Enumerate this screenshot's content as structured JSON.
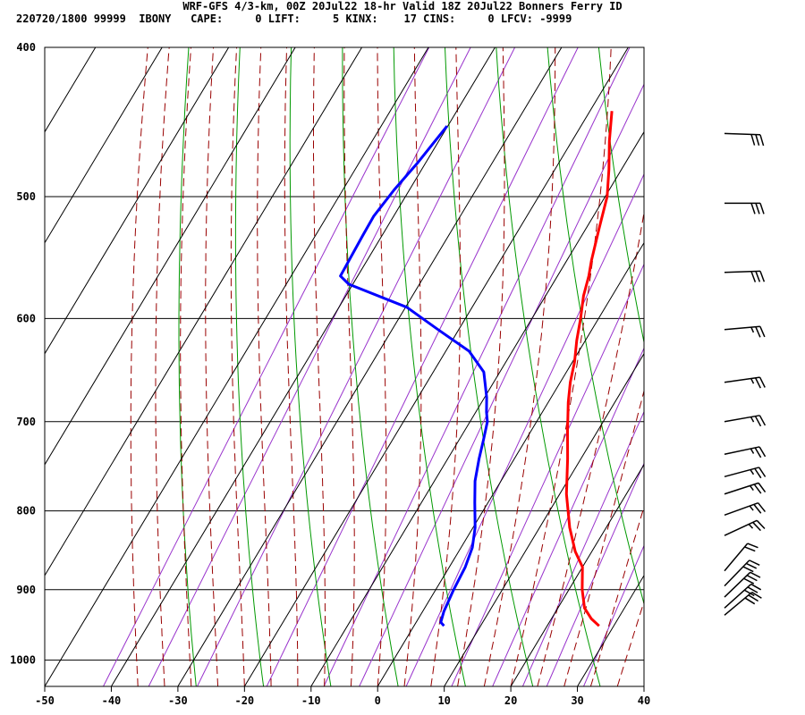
{
  "header": {
    "title": "WRF-GFS 4/3-km, 00Z 20Jul22 18-hr Valid 18Z 20Jul22 Bonners Ferry ID",
    "indices": "220720/1800 99999  IBONY   CAPE:     0 LIFT:     5 KINX:    17 CINS:     0 LFCV: -9999"
  },
  "chart_data": {
    "type": "line",
    "title": "WRF-GFS 4/3-km, 00Z 20Jul22 18-hr Valid 18Z 20Jul22 Bonners Ferry ID",
    "xlabel": "",
    "ylabel": "",
    "x_ticks": [
      -50,
      -40,
      -30,
      -20,
      -10,
      0,
      10,
      20,
      30,
      40
    ],
    "y_ticks": [
      400,
      500,
      600,
      700,
      800,
      900,
      1000
    ],
    "xlim": [
      -50,
      40
    ],
    "ylim": [
      1040,
      400
    ],
    "y_scale": "log-pressure",
    "grid": true,
    "colors": {
      "temperature": "#ff0000",
      "dewpoint": "#0000ff",
      "dry_adiabat": "#009900",
      "moist_adiabat": "#990000",
      "mixing_ratio": "#9933cc",
      "grid": "#000000",
      "wind": "#000000"
    },
    "series": [
      {
        "points": [
          [
            27.8,
            950
          ],
          [
            26.0,
            940
          ],
          [
            24.0,
            925
          ],
          [
            22.0,
            900
          ],
          [
            20.0,
            870
          ],
          [
            17.5,
            850
          ],
          [
            14.5,
            820
          ],
          [
            11.0,
            780
          ],
          [
            8.0,
            740
          ],
          [
            5.5,
            710
          ],
          [
            3.0,
            680
          ],
          [
            1.5,
            660
          ],
          [
            0.3,
            640
          ],
          [
            -1.3,
            620
          ],
          [
            -2.7,
            600
          ],
          [
            -4.3,
            580
          ],
          [
            -5.3,
            563
          ],
          [
            -6.3,
            550
          ],
          [
            -8.0,
            525
          ],
          [
            -9.7,
            500
          ],
          [
            -11.9,
            480
          ],
          [
            -14.4,
            460
          ],
          [
            -16.7,
            440
          ]
        ]
      },
      {
        "points": [
          [
            4.5,
            950
          ],
          [
            3.7,
            945
          ],
          [
            3.2,
            930
          ],
          [
            2.7,
            900
          ],
          [
            2.4,
            870
          ],
          [
            1.7,
            845
          ],
          [
            0.3,
            820
          ],
          [
            -2.0,
            790
          ],
          [
            -3.9,
            765
          ],
          [
            -5.3,
            740
          ],
          [
            -6.3,
            720
          ],
          [
            -7.4,
            700
          ],
          [
            -8.4,
            690
          ],
          [
            -9.7,
            675
          ],
          [
            -12.4,
            650
          ],
          [
            -16.5,
            630
          ],
          [
            -23.1,
            610
          ],
          [
            -29.8,
            590
          ],
          [
            -40.6,
            570
          ],
          [
            -42.6,
            563
          ],
          [
            -42.9,
            530
          ],
          [
            -43.0,
            515
          ],
          [
            -42.3,
            495
          ],
          [
            -41.2,
            475
          ],
          [
            -40.1,
            450
          ]
        ]
      }
    ],
    "winds": [
      {
        "p": 935,
        "dir": 230,
        "speed": 30
      },
      {
        "p": 925,
        "dir": 228,
        "speed": 30
      },
      {
        "p": 910,
        "dir": 226,
        "speed": 30
      },
      {
        "p": 895,
        "dir": 224,
        "speed": 30
      },
      {
        "p": 875,
        "dir": 220,
        "speed": 20
      },
      {
        "p": 830,
        "dir": 245,
        "speed": 25
      },
      {
        "p": 805,
        "dir": 250,
        "speed": 25
      },
      {
        "p": 780,
        "dir": 252,
        "speed": 25
      },
      {
        "p": 760,
        "dir": 255,
        "speed": 25
      },
      {
        "p": 735,
        "dir": 258,
        "speed": 25
      },
      {
        "p": 700,
        "dir": 260,
        "speed": 25
      },
      {
        "p": 660,
        "dir": 262,
        "speed": 25
      },
      {
        "p": 610,
        "dir": 265,
        "speed": 25
      },
      {
        "p": 560,
        "dir": 268,
        "speed": 30
      },
      {
        "p": 505,
        "dir": 270,
        "speed": 30
      },
      {
        "p": 455,
        "dir": 272,
        "speed": 30
      }
    ]
  }
}
